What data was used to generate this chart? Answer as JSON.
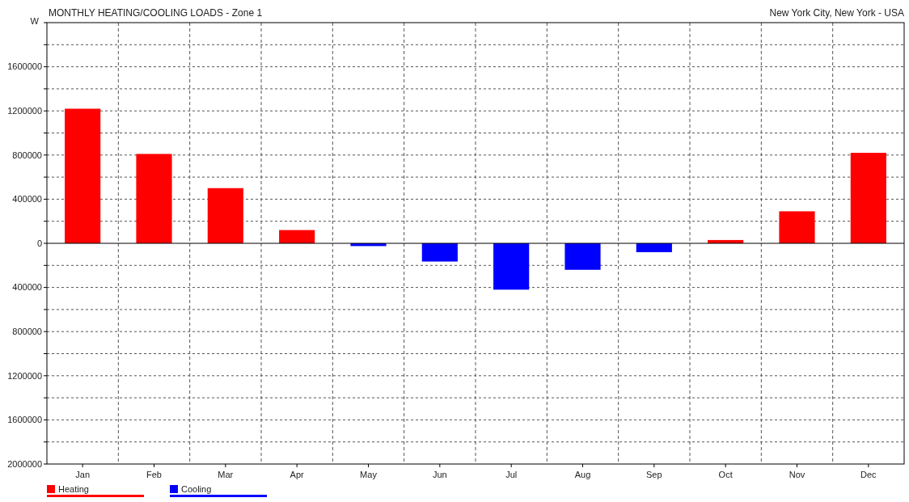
{
  "chart_data": {
    "type": "bar",
    "title": "MONTHLY HEATING/COOLING LOADS - Zone 1",
    "subtitle": "New York City, New York - USA",
    "ylabel": "W",
    "categories": [
      "Jan",
      "Feb",
      "Mar",
      "Apr",
      "May",
      "Jun",
      "Jul",
      "Aug",
      "Sep",
      "Oct",
      "Nov",
      "Dec"
    ],
    "series": [
      {
        "name": "Heating",
        "color": "#ff0000",
        "values": [
          1220000,
          810000,
          500000,
          120000,
          null,
          null,
          null,
          null,
          null,
          30000,
          290000,
          820000
        ]
      },
      {
        "name": "Cooling",
        "color": "#0000ff",
        "values": [
          null,
          null,
          null,
          null,
          -25000,
          -165000,
          -420000,
          -240000,
          -80000,
          null,
          null,
          null
        ]
      }
    ],
    "ylim": [
      -2000000,
      2000000
    ],
    "yticks": [
      {
        "value": -2000000,
        "label": "2000000"
      },
      {
        "value": -1800000,
        "label": null
      },
      {
        "value": -1600000,
        "label": "1600000"
      },
      {
        "value": -1400000,
        "label": null
      },
      {
        "value": -1200000,
        "label": "1200000"
      },
      {
        "value": -1000000,
        "label": null
      },
      {
        "value": -800000,
        "label": "800000"
      },
      {
        "value": -600000,
        "label": null
      },
      {
        "value": -400000,
        "label": "400000"
      },
      {
        "value": -200000,
        "label": null
      },
      0,
      {
        "value": 200000,
        "label": null
      },
      400000,
      {
        "value": 600000,
        "label": null
      },
      800000,
      {
        "value": 1000000,
        "label": null
      },
      1200000,
      {
        "value": 1400000,
        "label": null
      },
      1600000,
      {
        "value": 1800000,
        "label": null
      },
      {
        "value": 2000000,
        "label": null
      }
    ],
    "grid": true,
    "legend": "bottom left"
  }
}
